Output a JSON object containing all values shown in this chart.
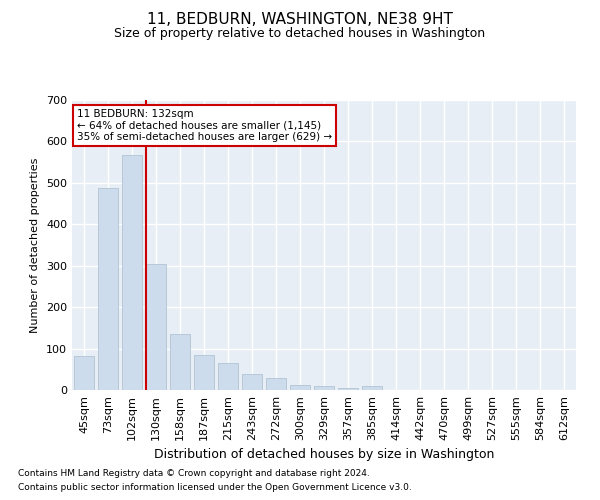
{
  "title": "11, BEDBURN, WASHINGTON, NE38 9HT",
  "subtitle": "Size of property relative to detached houses in Washington",
  "xlabel": "Distribution of detached houses by size in Washington",
  "ylabel": "Number of detached properties",
  "footnote1": "Contains HM Land Registry data © Crown copyright and database right 2024.",
  "footnote2": "Contains public sector information licensed under the Open Government Licence v3.0.",
  "annotation_line1": "11 BEDBURN: 132sqm",
  "annotation_line2": "← 64% of detached houses are smaller (1,145)",
  "annotation_line3": "35% of semi-detached houses are larger (629) →",
  "bar_color": "#ccdcec",
  "bar_edge_color": "#aabccc",
  "bar_line_color": "#cc0000",
  "annotation_box_color": "#ffffff",
  "annotation_box_edge": "#cc0000",
  "background_color": "#e8eef5",
  "grid_color": "#ffffff",
  "categories": [
    "45sqm",
    "73sqm",
    "102sqm",
    "130sqm",
    "158sqm",
    "187sqm",
    "215sqm",
    "243sqm",
    "272sqm",
    "300sqm",
    "329sqm",
    "357sqm",
    "385sqm",
    "414sqm",
    "442sqm",
    "470sqm",
    "499sqm",
    "527sqm",
    "555sqm",
    "584sqm",
    "612sqm"
  ],
  "values": [
    82,
    487,
    567,
    303,
    136,
    85,
    64,
    38,
    30,
    11,
    10,
    6,
    10,
    0,
    0,
    0,
    0,
    0,
    0,
    0,
    0
  ],
  "marker_index": 3,
  "ylim": [
    0,
    700
  ],
  "yticks": [
    0,
    100,
    200,
    300,
    400,
    500,
    600,
    700
  ],
  "title_fontsize": 11,
  "subtitle_fontsize": 9,
  "ylabel_fontsize": 8,
  "xlabel_fontsize": 9,
  "tick_fontsize": 8,
  "footnote_fontsize": 6.5
}
